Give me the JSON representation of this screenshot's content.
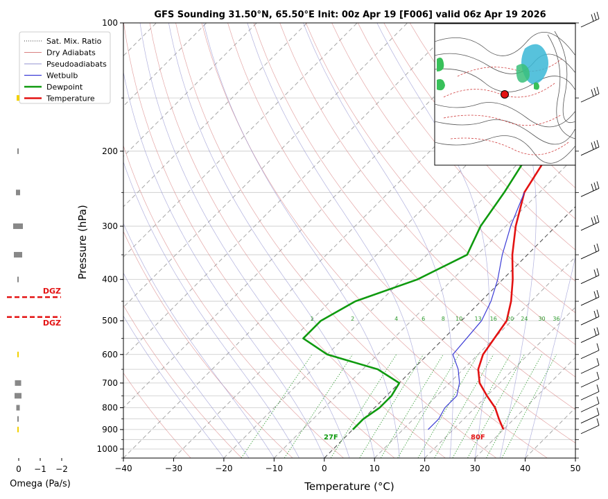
{
  "chart_data": {
    "type": "line",
    "title": "GFS Sounding 31.50°N, 65.50°E Init: 00z Apr 19 [F006] valid 06z Apr 19 2026",
    "xlabel": "Temperature (°C)",
    "ylabel": "Pressure (hPa)",
    "xlim": [
      -40,
      50
    ],
    "ylim": [
      1050,
      100
    ],
    "y_scale": "log",
    "x_ticks": [
      "−40",
      "−30",
      "−20",
      "−10",
      "0",
      "10",
      "20",
      "30",
      "40",
      "50"
    ],
    "y_ticks": [
      "100",
      "200",
      "300",
      "400",
      "500",
      "600",
      "700",
      "800",
      "900",
      "1000"
    ],
    "grid": true,
    "legend_placement": "top-left",
    "legend": [
      {
        "label": "Sat. Mix. Ratio",
        "color": "#3a3a3a",
        "style": "dotted"
      },
      {
        "label": "Dry Adiabats",
        "color": "#d98080",
        "style": "solid"
      },
      {
        "label": "Pseudoadiabats",
        "color": "#9090d0",
        "style": "solid"
      },
      {
        "label": "Wetbulb",
        "color": "#3b3bd6",
        "style": "solid"
      },
      {
        "label": "Dewpoint",
        "color": "#0f9a0f",
        "style": "solid"
      },
      {
        "label": "Temperature",
        "color": "#e31212",
        "style": "solid"
      }
    ],
    "series": [
      {
        "name": "Temperature",
        "color": "#e31212",
        "points": [
          [
            -2,
            100
          ],
          [
            -9,
            150
          ],
          [
            -16,
            200
          ],
          [
            -13,
            250
          ],
          [
            -8,
            300
          ],
          [
            -3,
            350
          ],
          [
            2,
            400
          ],
          [
            6,
            450
          ],
          [
            9,
            500
          ],
          [
            11,
            600
          ],
          [
            13,
            650
          ],
          [
            16,
            700
          ],
          [
            20,
            750
          ],
          [
            24,
            800
          ],
          [
            27,
            850
          ],
          [
            30,
            900
          ]
        ]
      },
      {
        "name": "Dewpoint",
        "color": "#0f9a0f",
        "points": [
          [
            -22,
            100
          ],
          [
            -27,
            150
          ],
          [
            -20,
            200
          ],
          [
            -17,
            250
          ],
          [
            -15,
            300
          ],
          [
            -12,
            350
          ],
          [
            -17,
            400
          ],
          [
            -25,
            450
          ],
          [
            -28,
            500
          ],
          [
            -28,
            550
          ],
          [
            -20,
            600
          ],
          [
            -7,
            650
          ],
          [
            0,
            700
          ],
          [
            1,
            750
          ],
          [
            1,
            800
          ],
          [
            0,
            850
          ],
          [
            0,
            900
          ]
        ]
      },
      {
        "name": "Wetbulb",
        "color": "#3b3bd6",
        "points": [
          [
            -13,
            250
          ],
          [
            -9,
            300
          ],
          [
            -5,
            350
          ],
          [
            -1,
            400
          ],
          [
            2,
            450
          ],
          [
            4,
            500
          ],
          [
            5,
            600
          ],
          [
            9,
            650
          ],
          [
            12,
            700
          ],
          [
            14,
            750
          ],
          [
            14,
            800
          ],
          [
            15,
            850
          ],
          [
            15,
            900
          ]
        ]
      }
    ],
    "mixing_ratio_labels": [
      "1",
      "2",
      "4",
      "6",
      "8",
      "10",
      "13",
      "16",
      "20",
      "24",
      "30",
      "36"
    ],
    "surface_labels": {
      "dewpoint": "27F",
      "temperature": "80F"
    },
    "omega_panel": {
      "xlabel": "Omega (Pa/s)",
      "x_ticks": [
        "0",
        "−1",
        "−2"
      ],
      "dgz_label": "DGZ",
      "dgz_bounds_hpa": [
        440,
        490
      ]
    }
  }
}
